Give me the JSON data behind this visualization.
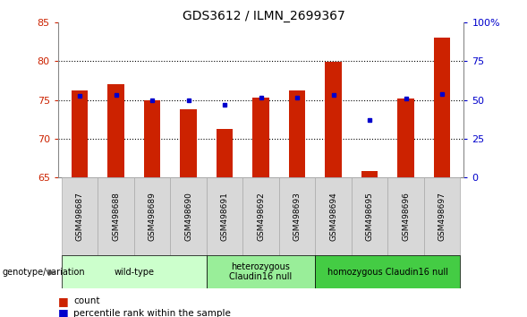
{
  "title": "GDS3612 / ILMN_2699367",
  "samples": [
    "GSM498687",
    "GSM498688",
    "GSM498689",
    "GSM498690",
    "GSM498691",
    "GSM498692",
    "GSM498693",
    "GSM498694",
    "GSM498695",
    "GSM498696",
    "GSM498697"
  ],
  "bar_values": [
    76.2,
    77.0,
    75.0,
    73.8,
    71.2,
    75.3,
    76.2,
    79.9,
    65.8,
    75.2,
    83.0
  ],
  "dot_values": [
    75.5,
    75.6,
    75.0,
    75.0,
    74.4,
    75.3,
    75.3,
    75.6,
    72.4,
    75.2,
    75.8
  ],
  "ylim": [
    65,
    85
  ],
  "y_left_ticks": [
    65,
    70,
    75,
    80,
    85
  ],
  "y_right_ticks": [
    0,
    25,
    50,
    75,
    100
  ],
  "ytick_right_labels": [
    "0",
    "25",
    "50",
    "75",
    "100%"
  ],
  "bar_color": "#cc2200",
  "dot_color": "#0000cc",
  "bar_bottom": 65,
  "groups": [
    {
      "label": "wild-type",
      "start": 0,
      "end": 3,
      "color": "#ccffcc"
    },
    {
      "label": "heterozygous\nClaudin16 null",
      "start": 4,
      "end": 6,
      "color": "#99ee99"
    },
    {
      "label": "homozygous Claudin16 null",
      "start": 7,
      "end": 10,
      "color": "#44cc44"
    }
  ],
  "group_label_prefix": "genotype/variation",
  "legend_count_label": "count",
  "legend_percentile_label": "percentile rank within the sample",
  "grid_color": "#000000",
  "background_color": "#ffffff",
  "title_fontsize": 10,
  "axis_label_color_left": "#cc2200",
  "axis_label_color_right": "#0000cc"
}
